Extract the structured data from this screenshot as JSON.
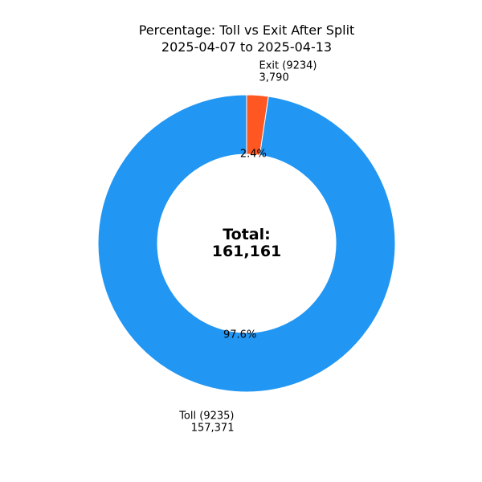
{
  "chart_data": {
    "type": "pie",
    "title": "Percentage: Toll vs Exit After Split",
    "subtitle": "2025-04-07 to 2025-04-13",
    "series": [
      {
        "name": "Exit (9234)",
        "value": 3790,
        "value_label": "3,790",
        "percent_label": "2.4%",
        "color": "#FF5722"
      },
      {
        "name": "Toll (9235)",
        "value": 157371,
        "value_label": "157,371",
        "percent_label": "97.6%",
        "color": "#2196F3"
      }
    ],
    "center_label": {
      "line1": "Total:",
      "line2": "161,161"
    },
    "donut": true,
    "start_angle": "top",
    "direction": "clockwise",
    "legend": "none"
  }
}
